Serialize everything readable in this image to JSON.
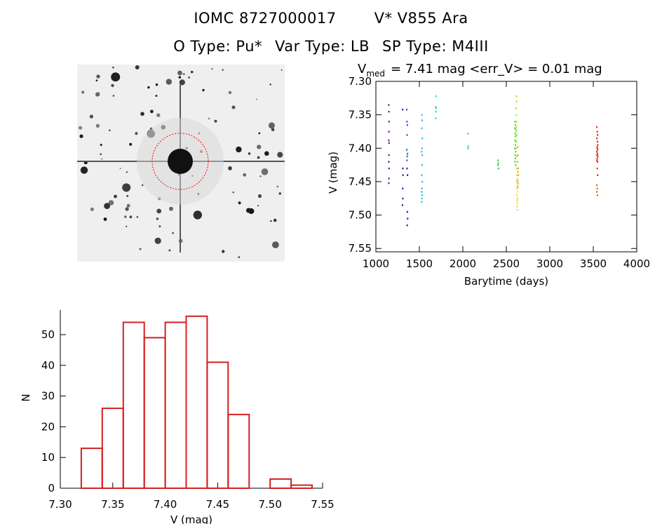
{
  "header": {
    "object_id": "IOMC 8727000017",
    "star_name": "V* V855 Ara",
    "o_type": "O Type: Pu*",
    "var_type": "Var Type: LB",
    "sp_type": "SP Type: M4III"
  },
  "finder": {
    "colors": {
      "background": "#efefef",
      "circle": "#ff0000"
    }
  },
  "chart_data": [
    {
      "type": "scatter",
      "title_prefix": "V",
      "title_sub": "med",
      "title_rest": "= 7.41 mag <err_V> = 0.01 mag",
      "xlabel": "Barytime (days)",
      "ylabel": "V (mag)",
      "xlim": [
        1000,
        4000
      ],
      "ylim": [
        7.555,
        7.3
      ],
      "x_ticks": [
        1000,
        1500,
        2000,
        2500,
        3000,
        3500,
        4000
      ],
      "x_tick_labels": [
        "1000",
        "1500",
        "2000",
        "2500",
        "3000",
        "3500",
        "4000"
      ],
      "y_ticks": [
        7.3,
        7.35,
        7.4,
        7.45,
        7.5,
        7.55
      ],
      "y_tick_labels": [
        "7.30",
        "7.35",
        "7.40",
        "7.45",
        "7.50",
        "7.55"
      ],
      "grid": false,
      "legend": "none",
      "groups": [
        {
          "color": "#6a0d8f",
          "points": [
            [
              1148,
              7.335
            ],
            [
              1150,
              7.345
            ],
            [
              1152,
              7.36
            ],
            [
              1150,
              7.375
            ],
            [
              1148,
              7.388
            ],
            [
              1152,
              7.392
            ],
            [
              1150,
              7.41
            ],
            [
              1148,
              7.42
            ],
            [
              1152,
              7.43
            ],
            [
              1150,
              7.445
            ],
            [
              1148,
              7.452
            ]
          ]
        },
        {
          "color": "#2c1aa8",
          "points": [
            [
              1308,
              7.342
            ],
            [
              1310,
              7.43
            ],
            [
              1312,
              7.44
            ],
            [
              1308,
              7.46
            ],
            [
              1310,
              7.475
            ],
            [
              1306,
              7.485
            ],
            [
              1362,
              7.495
            ],
            [
              1365,
              7.505
            ],
            [
              1360,
              7.515
            ],
            [
              1364,
              7.44
            ],
            [
              1358,
              7.43
            ]
          ]
        },
        {
          "color": "#1f5fd8",
          "points": [
            [
              1355,
              7.342
            ],
            [
              1358,
              7.36
            ],
            [
              1362,
              7.365
            ],
            [
              1360,
              7.38
            ],
            [
              1356,
              7.402
            ],
            [
              1364,
              7.408
            ],
            [
              1360,
              7.412
            ],
            [
              1357,
              7.418
            ]
          ]
        },
        {
          "color": "#2ab8e8",
          "points": [
            [
              1530,
              7.35
            ],
            [
              1532,
              7.358
            ],
            [
              1528,
              7.37
            ],
            [
              1534,
              7.385
            ],
            [
              1530,
              7.4
            ],
            [
              1526,
              7.405
            ],
            [
              1532,
              7.41
            ],
            [
              1530,
              7.425
            ],
            [
              1528,
              7.44
            ],
            [
              1534,
              7.45
            ],
            [
              1530,
              7.46
            ],
            [
              1526,
              7.465
            ],
            [
              1532,
              7.47
            ],
            [
              1530,
              7.475
            ],
            [
              1528,
              7.48
            ]
          ]
        },
        {
          "color": "#22e0b0",
          "points": [
            [
              1690,
              7.322
            ],
            [
              1688,
              7.338
            ],
            [
              1692,
              7.34
            ],
            [
              1690,
              7.345
            ],
            [
              1688,
              7.355
            ]
          ]
        },
        {
          "color": "#3ed880",
          "points": [
            [
              2060,
              7.378
            ],
            [
              2062,
              7.397
            ],
            [
              2060,
              7.4
            ]
          ]
        },
        {
          "color": "#40c85a",
          "points": [
            [
              2405,
              7.418
            ],
            [
              2408,
              7.422
            ],
            [
              2404,
              7.425
            ],
            [
              2410,
              7.43
            ]
          ]
        },
        {
          "color": "#4fd830",
          "points": [
            [
              2600,
              7.36
            ],
            [
              2605,
              7.365
            ],
            [
              2598,
              7.37
            ],
            [
              2610,
              7.372
            ],
            [
              2602,
              7.378
            ],
            [
              2606,
              7.382
            ],
            [
              2600,
              7.388
            ],
            [
              2612,
              7.39
            ],
            [
              2604,
              7.395
            ],
            [
              2598,
              7.4
            ],
            [
              2608,
              7.405
            ],
            [
              2602,
              7.41
            ],
            [
              2606,
              7.415
            ],
            [
              2600,
              7.42
            ],
            [
              2610,
              7.425
            ]
          ]
        },
        {
          "color": "#a8e820",
          "points": [
            [
              2615,
              7.322
            ],
            [
              2618,
              7.33
            ],
            [
              2612,
              7.34
            ],
            [
              2616,
              7.35
            ],
            [
              2620,
              7.36
            ],
            [
              2614,
              7.368
            ],
            [
              2618,
              7.375
            ],
            [
              2622,
              7.38
            ],
            [
              2616,
              7.39
            ],
            [
              2612,
              7.4
            ],
            [
              2620,
              7.412
            ],
            [
              2618,
              7.43
            ]
          ]
        },
        {
          "color": "#f0e020",
          "points": [
            [
              2620,
              7.44
            ],
            [
              2625,
              7.445
            ],
            [
              2618,
              7.45
            ],
            [
              2628,
              7.455
            ],
            [
              2622,
              7.46
            ],
            [
              2626,
              7.465
            ],
            [
              2620,
              7.47
            ],
            [
              2630,
              7.475
            ],
            [
              2624,
              7.478
            ],
            [
              2628,
              7.482
            ],
            [
              2622,
              7.487
            ],
            [
              2626,
              7.492
            ]
          ]
        },
        {
          "color": "#f0a020",
          "points": [
            [
              2630,
              7.398
            ],
            [
              2634,
              7.41
            ],
            [
              2628,
              7.42
            ],
            [
              2636,
              7.43
            ],
            [
              2632,
              7.435
            ],
            [
              2638,
              7.44
            ],
            [
              2630,
              7.448
            ],
            [
              2635,
              7.452
            ],
            [
              2632,
              7.458
            ]
          ]
        },
        {
          "color": "#e86010",
          "points": [
            [
              3540,
              7.455
            ],
            [
              3545,
              7.46
            ],
            [
              3542,
              7.465
            ],
            [
              3548,
              7.47
            ]
          ]
        },
        {
          "color": "#d83010",
          "points": [
            [
              3540,
              7.368
            ],
            [
              3545,
              7.375
            ],
            [
              3550,
              7.38
            ],
            [
              3542,
              7.385
            ],
            [
              3548,
              7.39
            ],
            [
              3552,
              7.395
            ],
            [
              3544,
              7.398
            ],
            [
              3546,
              7.4
            ],
            [
              3550,
              7.402
            ],
            [
              3540,
              7.405
            ],
            [
              3548,
              7.408
            ],
            [
              3543,
              7.41
            ],
            [
              3552,
              7.412
            ],
            [
              3546,
              7.415
            ],
            [
              3541,
              7.418
            ],
            [
              3549,
              7.42
            ],
            [
              3545,
              7.43
            ],
            [
              3550,
              7.44
            ]
          ]
        }
      ]
    },
    {
      "type": "bar",
      "title": "",
      "xlabel": "V (mag)",
      "ylabel": "N",
      "xlim": [
        7.3,
        7.55
      ],
      "ylim": [
        0,
        58
      ],
      "bin_width": 0.02,
      "bin_starts": [
        7.32,
        7.34,
        7.36,
        7.38,
        7.4,
        7.42,
        7.44,
        7.46,
        7.48,
        7.5,
        7.52
      ],
      "values": [
        13,
        26,
        54,
        49,
        54,
        56,
        41,
        24,
        0,
        3,
        1
      ],
      "x_ticks": [
        7.3,
        7.35,
        7.4,
        7.45,
        7.5,
        7.55
      ],
      "x_tick_labels": [
        "7.30",
        "7.35",
        "7.40",
        "7.45",
        "7.50",
        "7.55"
      ],
      "y_ticks": [
        0,
        10,
        20,
        30,
        40,
        50
      ],
      "y_tick_labels": [
        "0",
        "10",
        "20",
        "30",
        "40",
        "50"
      ],
      "bar_color": "#d42020",
      "grid": false,
      "legend": "none"
    }
  ]
}
